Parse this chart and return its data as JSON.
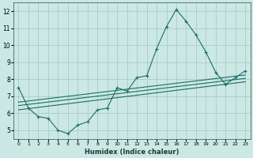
{
  "xlabel": "Humidex (Indice chaleur)",
  "bg_color": "#cce8e4",
  "grid_color": "#a8ccc8",
  "line_color": "#1a6e64",
  "xlim": [
    -0.5,
    23.5
  ],
  "ylim": [
    4.5,
    12.5
  ],
  "xticks": [
    0,
    1,
    2,
    3,
    4,
    5,
    6,
    7,
    8,
    9,
    10,
    11,
    12,
    13,
    14,
    15,
    16,
    17,
    18,
    19,
    20,
    21,
    22,
    23
  ],
  "yticks": [
    5,
    6,
    7,
    8,
    9,
    10,
    11,
    12
  ],
  "main_x": [
    0,
    1,
    2,
    3,
    4,
    5,
    6,
    7,
    8,
    9,
    10,
    11,
    12,
    13,
    14,
    15,
    16,
    17,
    18,
    19,
    20,
    21,
    22,
    23
  ],
  "main_y": [
    7.5,
    6.3,
    5.8,
    5.7,
    5.0,
    4.8,
    5.3,
    5.5,
    6.2,
    6.3,
    7.5,
    7.3,
    8.1,
    8.2,
    9.8,
    11.1,
    12.1,
    11.4,
    10.6,
    9.6,
    8.4,
    7.7,
    8.1,
    8.5
  ],
  "line1_x": [
    0,
    23
  ],
  "line1_y": [
    6.2,
    7.85
  ],
  "line2_x": [
    0,
    23
  ],
  "line2_y": [
    6.45,
    8.05
  ],
  "line3_x": [
    0,
    23
  ],
  "line3_y": [
    6.65,
    8.25
  ]
}
